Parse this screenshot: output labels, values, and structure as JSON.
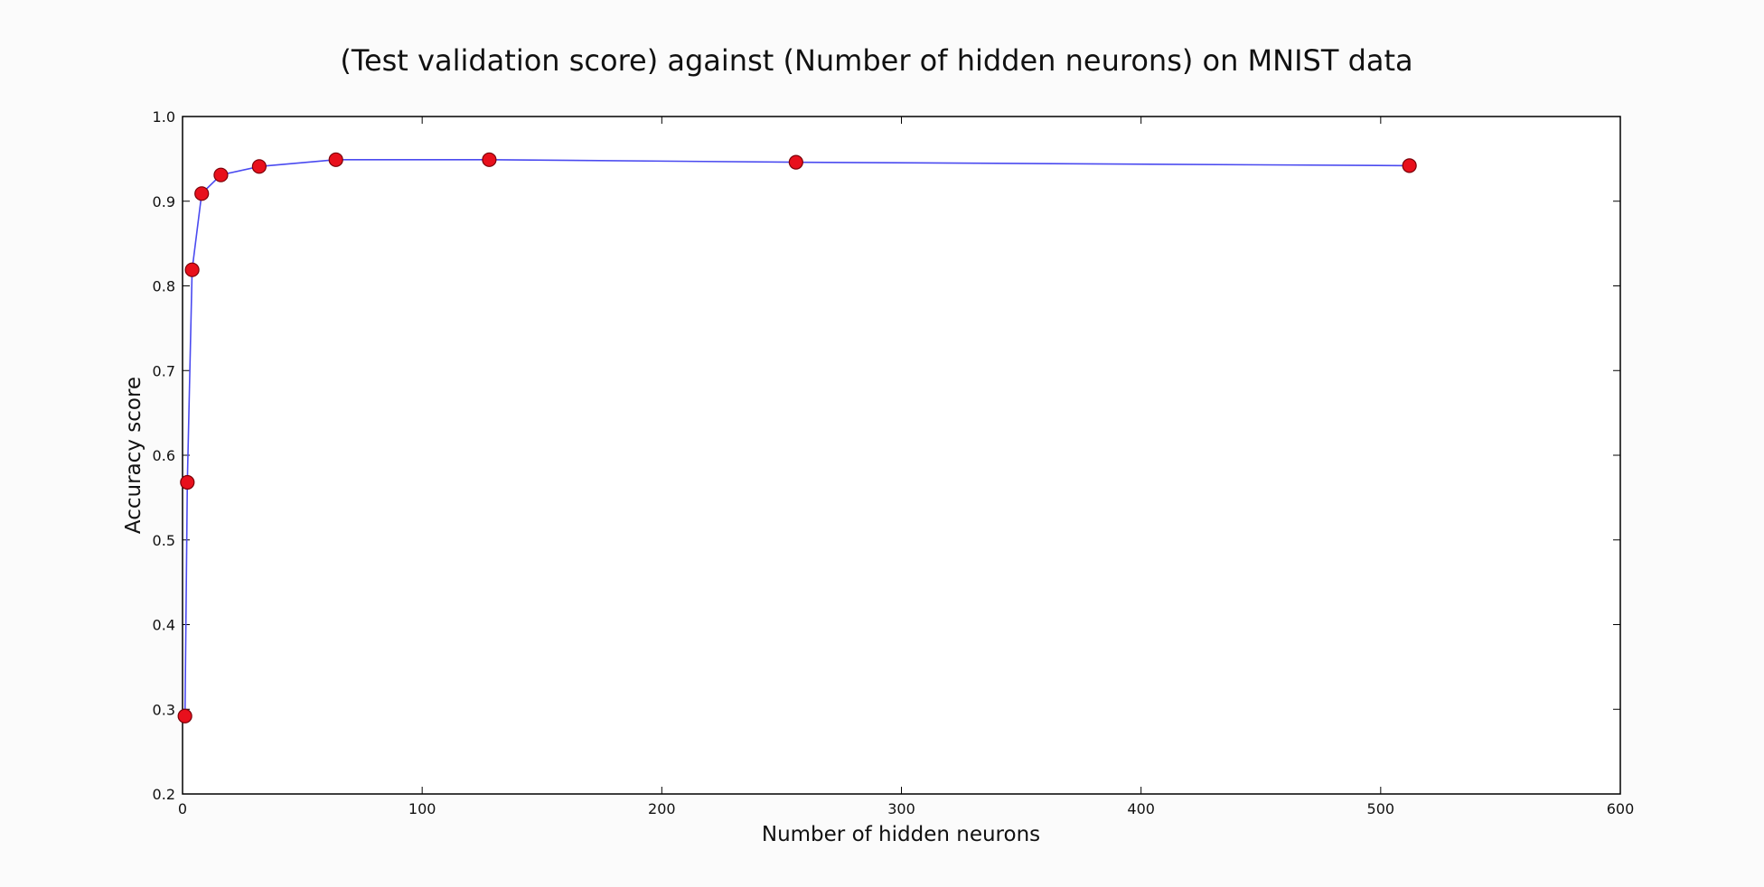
{
  "chart_data": {
    "type": "line",
    "title": "(Test validation score) against (Number of hidden neurons) on MNIST data",
    "xlabel": "Number of hidden neurons",
    "ylabel": "Accuracy score",
    "xlim": [
      0,
      600
    ],
    "ylim": [
      0.2,
      1.0
    ],
    "xticks": [
      0,
      100,
      200,
      300,
      400,
      500,
      600
    ],
    "yticks": [
      0.2,
      0.3,
      0.4,
      0.5,
      0.6,
      0.7,
      0.8,
      0.9,
      1.0
    ],
    "xtick_labels": [
      "0",
      "100",
      "200",
      "300",
      "400",
      "500",
      "600"
    ],
    "ytick_labels": [
      "0.2",
      "0.3",
      "0.4",
      "0.5",
      "0.6",
      "0.7",
      "0.8",
      "0.9",
      "1.0"
    ],
    "grid": false,
    "line_color": "#4a4af0",
    "marker_color": "#e8101c",
    "marker_edge_color": "#7a0008",
    "series": [
      {
        "x": [
          1,
          2,
          4,
          8,
          16,
          32,
          64,
          128,
          256,
          512
        ],
        "y": [
          0.292,
          0.568,
          0.819,
          0.909,
          0.931,
          0.941,
          0.949,
          0.949,
          0.946,
          0.942
        ]
      }
    ]
  }
}
